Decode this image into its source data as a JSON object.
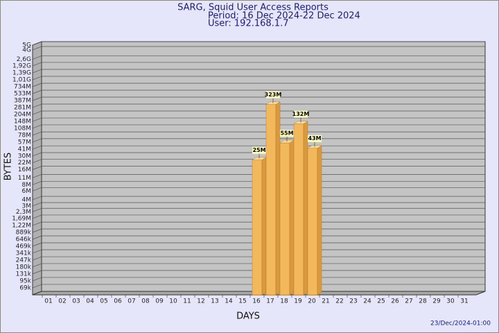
{
  "chart_data": {
    "type": "bar",
    "title": "SARG, Squid User Access Reports",
    "subtitle": [
      "Period: 16 Dec 2024-22 Dec 2024",
      "User: 192.168.1.7"
    ],
    "x_label": "DAYS",
    "y_label": "BYTES",
    "footer": "23/Dec/2024-01:00",
    "categories": [
      "01",
      "02",
      "03",
      "04",
      "05",
      "06",
      "07",
      "08",
      "09",
      "10",
      "11",
      "12",
      "13",
      "14",
      "15",
      "16",
      "17",
      "18",
      "19",
      "20",
      "21",
      "22",
      "23",
      "24",
      "25",
      "26",
      "27",
      "28",
      "29",
      "30",
      "31"
    ],
    "values": [
      null,
      null,
      null,
      null,
      null,
      null,
      null,
      null,
      null,
      null,
      null,
      null,
      null,
      null,
      null,
      25000000,
      323000000,
      55000000,
      132000000,
      43000000,
      null,
      null,
      null,
      null,
      null,
      null,
      null,
      null,
      null,
      null,
      null
    ],
    "value_labels": [
      null,
      null,
      null,
      null,
      null,
      null,
      null,
      null,
      null,
      null,
      null,
      null,
      null,
      null,
      null,
      "25M",
      "323M",
      "55M",
      "132M",
      "43M",
      null,
      null,
      null,
      null,
      null,
      null,
      null,
      null,
      null,
      null,
      null
    ],
    "color": "#f4b85c",
    "log_scale": true,
    "grid": true,
    "ylim": [
      50000,
      5000000000
    ],
    "yticks": [
      {
        "value": 69000,
        "label": "69k"
      },
      {
        "value": 95000,
        "label": "95k"
      },
      {
        "value": 131000,
        "label": "131k"
      },
      {
        "value": 180000,
        "label": "180k"
      },
      {
        "value": 247000,
        "label": "247k"
      },
      {
        "value": 341000,
        "label": "341k"
      },
      {
        "value": 469000,
        "label": "469k"
      },
      {
        "value": 646000,
        "label": "646k"
      },
      {
        "value": 889000,
        "label": "889k"
      },
      {
        "value": 1220000,
        "label": "1,22M"
      },
      {
        "value": 1690000,
        "label": "1,69M"
      },
      {
        "value": 2300000,
        "label": "2,3M"
      },
      {
        "value": 3000000,
        "label": "3M"
      },
      {
        "value": 4000000,
        "label": "4M"
      },
      {
        "value": 6000000,
        "label": "6M"
      },
      {
        "value": 8000000,
        "label": "8M"
      },
      {
        "value": 11000000,
        "label": "11M"
      },
      {
        "value": 16000000,
        "label": "16M"
      },
      {
        "value": 22000000,
        "label": "22M"
      },
      {
        "value": 30000000,
        "label": "30M"
      },
      {
        "value": 41000000,
        "label": "41M"
      },
      {
        "value": 57000000,
        "label": "57M"
      },
      {
        "value": 78000000,
        "label": "78M"
      },
      {
        "value": 108000000,
        "label": "108M"
      },
      {
        "value": 148000000,
        "label": "148M"
      },
      {
        "value": 204000000,
        "label": "204M"
      },
      {
        "value": 281000000,
        "label": "281M"
      },
      {
        "value": 387000000,
        "label": "387M"
      },
      {
        "value": 533000000,
        "label": "533M"
      },
      {
        "value": 734000000,
        "label": "734M"
      },
      {
        "value": 1010000000,
        "label": "1,01G"
      },
      {
        "value": 1390000000,
        "label": "1,39G"
      },
      {
        "value": 1920000000,
        "label": "1,92G"
      },
      {
        "value": 2600000000,
        "label": "2,6G"
      },
      {
        "value": 4000000000,
        "label": "4G"
      },
      {
        "value": 5000000000,
        "label": "5G"
      }
    ]
  }
}
